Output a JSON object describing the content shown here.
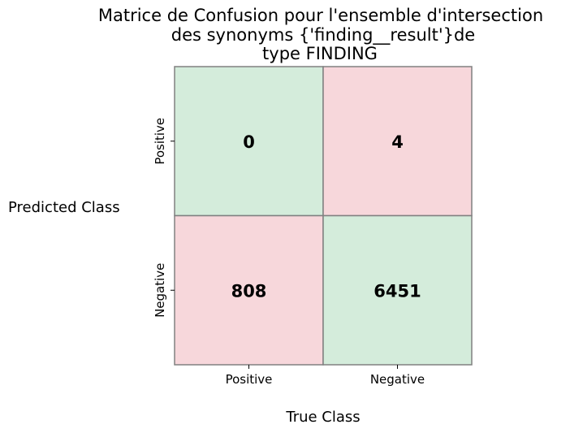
{
  "chart_data": {
    "type": "heatmap",
    "title_lines": [
      "Matrice de Confusion pour l'ensemble d'intersection",
      "des synonyms {'finding__result'}de",
      "type FINDING"
    ],
    "xlabel": "True Class",
    "ylabel": "Predicted Class",
    "x_categories": [
      "Positive",
      "Negative"
    ],
    "y_categories": [
      "Positive",
      "Negative"
    ],
    "cells": [
      {
        "row": 0,
        "col": 0,
        "value": 0,
        "kind": "correct"
      },
      {
        "row": 0,
        "col": 1,
        "value": 4,
        "kind": "error"
      },
      {
        "row": 1,
        "col": 0,
        "value": 808,
        "kind": "error"
      },
      {
        "row": 1,
        "col": 1,
        "value": 6451,
        "kind": "correct"
      }
    ],
    "colors": {
      "correct": "#d4ecdb",
      "error": "#f7d7db",
      "border": "#808080",
      "text": "#000000"
    }
  }
}
